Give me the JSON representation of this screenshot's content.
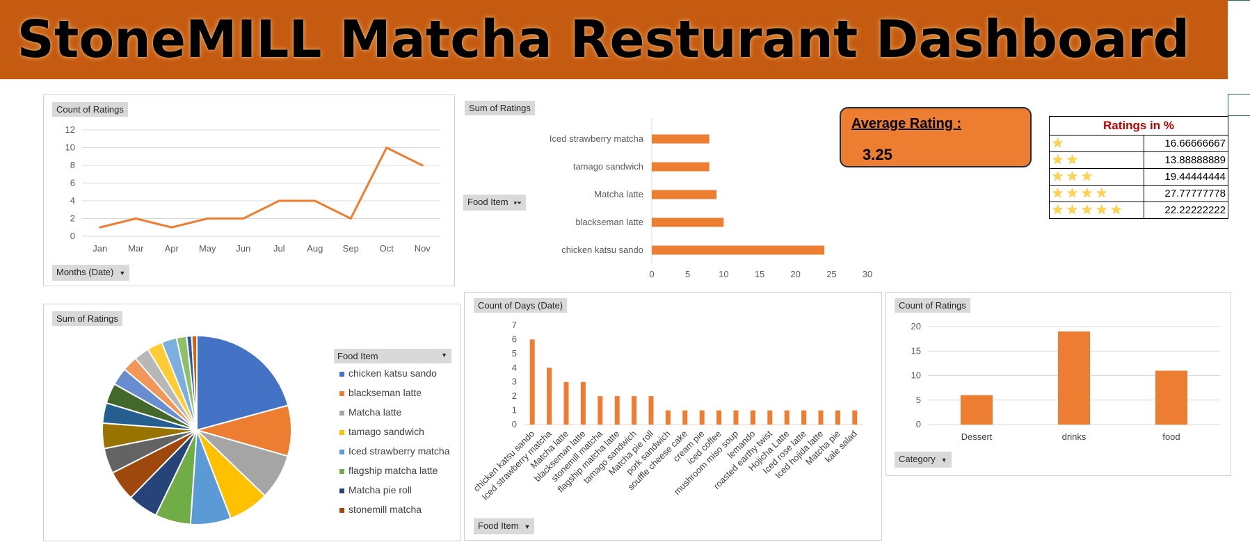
{
  "title": "StoneMILL Matcha Resturant Dashboard",
  "colors": {
    "banner": "#c55a11",
    "accent": "#ed7d31"
  },
  "line_panel": {
    "value_button": "Count of Ratings",
    "axis_button": "Months (Date)"
  },
  "bar_panel": {
    "value_button": "Sum of Ratings",
    "axis_button": "Food Item"
  },
  "pie_panel": {
    "value_button": "Sum of Ratings",
    "legend_button": "Food Item"
  },
  "column_panel": {
    "value_button": "Count of Days (Date)",
    "axis_button": "Food Item"
  },
  "category_panel": {
    "value_button": "Count of Ratings",
    "axis_button": "Category"
  },
  "average": {
    "label": "Average Rating :",
    "value": "3.25"
  },
  "ratings_table": {
    "title": "Ratings in %",
    "rows": [
      {
        "stars": 1,
        "value": "16.66666667"
      },
      {
        "stars": 2,
        "value": "13.88888889"
      },
      {
        "stars": 3,
        "value": "19.44444444"
      },
      {
        "stars": 4,
        "value": "27.77777778"
      },
      {
        "stars": 5,
        "value": "22.22222222"
      }
    ]
  },
  "chart_data": [
    {
      "type": "line",
      "categories": [
        "Jan",
        "Mar",
        "Apr",
        "May",
        "Jun",
        "Jul",
        "Aug",
        "Sep",
        "Oct",
        "Nov"
      ],
      "values": [
        1,
        2,
        1,
        2,
        2,
        4,
        4,
        2,
        10,
        8
      ],
      "ylim": [
        0,
        12
      ],
      "yticks": [
        "0",
        "2",
        "4",
        "6",
        "8",
        "10",
        "12"
      ],
      "color": "#ed7d31"
    },
    {
      "type": "bar",
      "orientation": "horizontal",
      "categories": [
        "Iced strawberry matcha",
        "tamago sandwich",
        "Matcha latte",
        "blackseman latte",
        "chicken katsu sando"
      ],
      "values": [
        8,
        8,
        9,
        10,
        24
      ],
      "xlim": [
        0,
        30
      ],
      "xticks": [
        "0",
        "5",
        "10",
        "15",
        "20",
        "25",
        "30"
      ],
      "color": "#ed7d31"
    },
    {
      "type": "pie",
      "slices": [
        {
          "label": "chicken katsu sando",
          "value": 24,
          "color": "#4472c4"
        },
        {
          "label": "blackseman latte",
          "value": 10,
          "color": "#ed7d31"
        },
        {
          "label": "Matcha latte",
          "value": 9,
          "color": "#a5a5a5"
        },
        {
          "label": "tamago sandwich",
          "value": 8,
          "color": "#ffc000"
        },
        {
          "label": "Iced strawberry matcha",
          "value": 8,
          "color": "#5b9bd5"
        },
        {
          "label": "flagship matcha latte",
          "value": 7,
          "color": "#70ad47"
        },
        {
          "label": "Matcha  pie roll",
          "value": 6,
          "color": "#264478"
        },
        {
          "label": "stonemill matcha",
          "value": 6,
          "color": "#9e480e"
        },
        {
          "label": "",
          "value": 5,
          "color": "#636363"
        },
        {
          "label": "",
          "value": 5,
          "color": "#997300"
        },
        {
          "label": "",
          "value": 4,
          "color": "#255e91"
        },
        {
          "label": "",
          "value": 4,
          "color": "#43682b"
        },
        {
          "label": "",
          "value": 3.5,
          "color": "#698ed0"
        },
        {
          "label": "",
          "value": 3,
          "color": "#f1975a"
        },
        {
          "label": "",
          "value": 3,
          "color": "#b7b7b7"
        },
        {
          "label": "",
          "value": 3,
          "color": "#ffcd33"
        },
        {
          "label": "",
          "value": 3,
          "color": "#7cafdd"
        },
        {
          "label": "",
          "value": 2,
          "color": "#8cc168"
        },
        {
          "label": "",
          "value": 1,
          "color": "#335aa1"
        },
        {
          "label": "",
          "value": 1,
          "color": "#d26012"
        }
      ]
    },
    {
      "type": "bar",
      "orientation": "vertical",
      "categories": [
        "chicken katsu sando",
        "Iced strawberry matcha",
        "Matcha latte",
        "blackseman latte",
        "stonemill matcha",
        "flagship matcha latte",
        "tamago sandwich",
        "Matcha  pie roll",
        "pork sandwich",
        "souffle cheese cake",
        "cream pie",
        "iced coffee",
        "mushroom miso soup",
        "lemando",
        "roasted earthy twist",
        "Hojicha Latte",
        "Iced rose latte",
        "Iced hojida latte",
        "Matcha pie",
        "kale salad"
      ],
      "values": [
        6,
        4,
        3,
        3,
        2,
        2,
        2,
        2,
        1,
        1,
        1,
        1,
        1,
        1,
        1,
        1,
        1,
        1,
        1,
        1
      ],
      "ylim": [
        0,
        7
      ],
      "yticks": [
        "0",
        "1",
        "2",
        "3",
        "4",
        "5",
        "6",
        "7"
      ],
      "color": "#ed7d31"
    },
    {
      "type": "bar",
      "orientation": "vertical",
      "categories": [
        "Dessert",
        "drinks",
        "food"
      ],
      "values": [
        6,
        19,
        11
      ],
      "ylim": [
        0,
        20
      ],
      "yticks": [
        "0",
        "5",
        "10",
        "15",
        "20"
      ],
      "color": "#ed7d31"
    }
  ]
}
